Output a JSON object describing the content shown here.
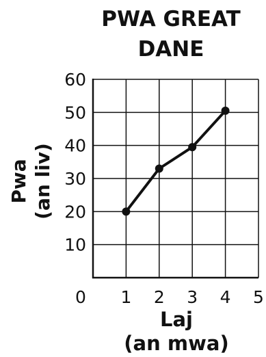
{
  "chart_data": {
    "type": "line",
    "title_lines": [
      "PWA GREAT",
      "DANE"
    ],
    "ylabel_lines": [
      "Pwa",
      "(an liv)"
    ],
    "xlabel_lines": [
      "Laj",
      "(an mwa)"
    ],
    "x_ticks": [
      "0",
      "1",
      "2",
      "3",
      "4",
      "5"
    ],
    "y_ticks": [
      "10",
      "20",
      "30",
      "40",
      "50",
      "60"
    ],
    "xlim": [
      0,
      5
    ],
    "ylim": [
      0,
      60
    ],
    "grid": true,
    "series": [
      {
        "x": [
          1,
          2,
          3,
          4
        ],
        "y": [
          20,
          33,
          39.5,
          50.5
        ]
      }
    ]
  }
}
